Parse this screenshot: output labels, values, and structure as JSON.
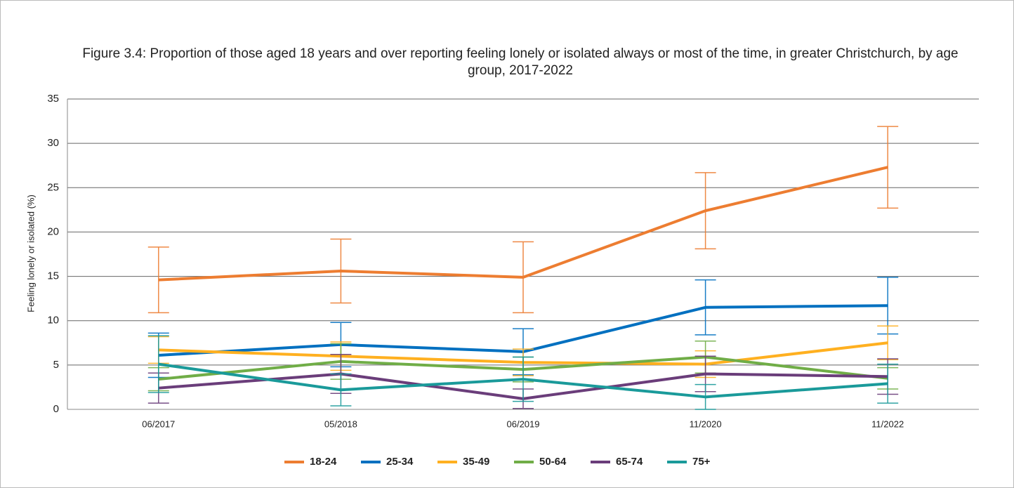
{
  "chart_data": {
    "type": "line",
    "title": "Figure 3.4: Proportion of those aged 18 years and over reporting feeling lonely or isolated always or most of the time, in greater Christchurch, by age group, 2017-2022",
    "y_label": "Feeling lonely or isolated (%)",
    "categories": [
      "06/2017",
      "05/2018",
      "06/2019",
      "11/2020",
      "11/2022"
    ],
    "ylim": [
      0,
      35
    ],
    "yticks": [
      0,
      5,
      10,
      15,
      20,
      25,
      30,
      35
    ],
    "grid": true,
    "legend": "bottom",
    "series": [
      {
        "name": "18-24",
        "color": "#ed7d31",
        "values": [
          14.6,
          15.6,
          14.9,
          22.4,
          27.3
        ],
        "errors": [
          3.7,
          3.6,
          4.0,
          4.3,
          4.6
        ]
      },
      {
        "name": "25-34",
        "color": "#0070c0",
        "values": [
          6.1,
          7.3,
          6.5,
          11.5,
          11.7
        ],
        "errors": [
          2.5,
          2.5,
          2.6,
          3.1,
          3.2
        ]
      },
      {
        "name": "35-49",
        "color": "#ffb020",
        "values": [
          6.7,
          6.0,
          5.3,
          5.1,
          7.5
        ],
        "errors": [
          1.5,
          1.6,
          1.5,
          1.5,
          1.9
        ]
      },
      {
        "name": "50-64",
        "color": "#70ad47",
        "values": [
          3.4,
          5.4,
          4.5,
          5.9,
          3.5
        ],
        "errors": [
          1.3,
          2.0,
          1.4,
          1.8,
          1.2
        ]
      },
      {
        "name": "65-74",
        "color": "#6a3d7a",
        "values": [
          2.4,
          4.0,
          1.2,
          4.0,
          3.7
        ],
        "errors": [
          1.7,
          2.2,
          1.1,
          2.0,
          2.0
        ]
      },
      {
        "name": "75+",
        "color": "#1a9a9a",
        "values": [
          5.1,
          2.2,
          3.4,
          1.4,
          2.9
        ],
        "errors": [
          3.2,
          1.8,
          2.5,
          1.4,
          2.2
        ]
      }
    ]
  }
}
